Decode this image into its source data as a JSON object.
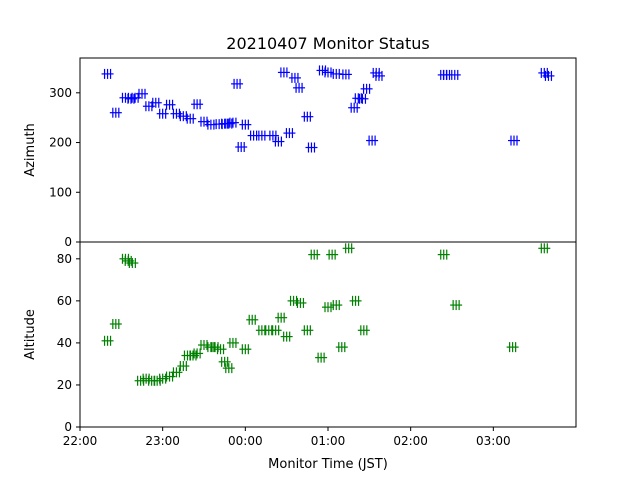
{
  "chart_data": {
    "type": "scatter",
    "title": "20210407 Monitor Status",
    "xlabel": "Monitor Time (JST)",
    "x_ticks": [
      "22:00",
      "23:00",
      "00:00",
      "01:00",
      "02:00",
      "03:00"
    ],
    "xlim": [
      "22:00",
      "04:00"
    ],
    "panels": [
      {
        "ylabel": "Azimuth",
        "ylim": [
          0,
          370
        ],
        "y_ticks": [
          "0",
          "100",
          "200",
          "300"
        ],
        "y_tick_values": [
          0,
          100,
          200,
          300
        ],
        "series": [
          {
            "color": "#0000ff",
            "marker": "plus-with-hline",
            "x": [
              "22:20",
              "22:26",
              "22:33",
              "22:37",
              "22:40",
              "22:45",
              "22:50",
              "22:55",
              "23:00",
              "23:05",
              "23:10",
              "23:15",
              "23:20",
              "23:25",
              "23:30",
              "23:35",
              "23:41",
              "23:45",
              "23:48",
              "23:51",
              "23:54",
              "23:57",
              "00:00",
              "00:06",
              "00:12",
              "00:20",
              "00:24",
              "00:28",
              "00:32",
              "00:36",
              "00:39",
              "00:45",
              "00:48",
              "00:56",
              "01:00",
              "01:06",
              "01:13",
              "01:19",
              "01:22",
              "01:25",
              "01:28",
              "01:32",
              "01:35",
              "01:37",
              "02:24",
              "02:26",
              "02:32",
              "03:15",
              "03:37",
              "03:40"
            ],
            "y": [
              338,
              260,
              290,
              288,
              290,
              298,
              273,
              280,
              258,
              276,
              258,
              253,
              248,
              277,
              242,
              236,
              237,
              238,
              238,
              240,
              318,
              191,
              236,
              214,
              214,
              214,
              202,
              341,
              219,
              330,
              310,
              252,
              190,
              345,
              341,
              338,
              337,
              270,
              289,
              288,
              308,
              204,
              340,
              334,
              336,
              336,
              336,
              204,
              340,
              334
            ]
          }
        ]
      },
      {
        "ylabel": "Altitude",
        "ylim": [
          0,
          88
        ],
        "y_ticks": [
          "0",
          "20",
          "40",
          "60",
          "80"
        ],
        "y_tick_values": [
          0,
          20,
          40,
          60,
          80
        ],
        "series": [
          {
            "color": "#008000",
            "marker": "plus-with-hline",
            "x": [
              "22:20",
              "22:26",
              "22:33",
              "22:35",
              "22:38",
              "22:44",
              "22:48",
              "22:52",
              "22:56",
              "23:00",
              "23:05",
              "23:10",
              "23:15",
              "23:18",
              "23:22",
              "23:25",
              "23:30",
              "23:35",
              "23:38",
              "23:42",
              "23:45",
              "23:48",
              "23:51",
              "24:00",
              "24:05",
              "24:12",
              "24:17",
              "24:22",
              "24:26",
              "24:30",
              "24:35",
              "24:40",
              "24:45",
              "24:50",
              "24:55",
              "25:00",
              "25:03",
              "25:06",
              "25:10",
              "25:15",
              "25:20",
              "25:26",
              "26:24",
              "26:33",
              "27:14",
              "27:37"
            ],
            "y": [
              41,
              49,
              80,
              79,
              78,
              22,
              23,
              22,
              22,
              23,
              24,
              26,
              29,
              34,
              34,
              35,
              39,
              38,
              38,
              37,
              31,
              28,
              40,
              37,
              51,
              46,
              46,
              46,
              52,
              43,
              60,
              59,
              46,
              82,
              33,
              57,
              82,
              58,
              38,
              85,
              60,
              46,
              82,
              58,
              38,
              85
            ]
          }
        ]
      }
    ]
  }
}
